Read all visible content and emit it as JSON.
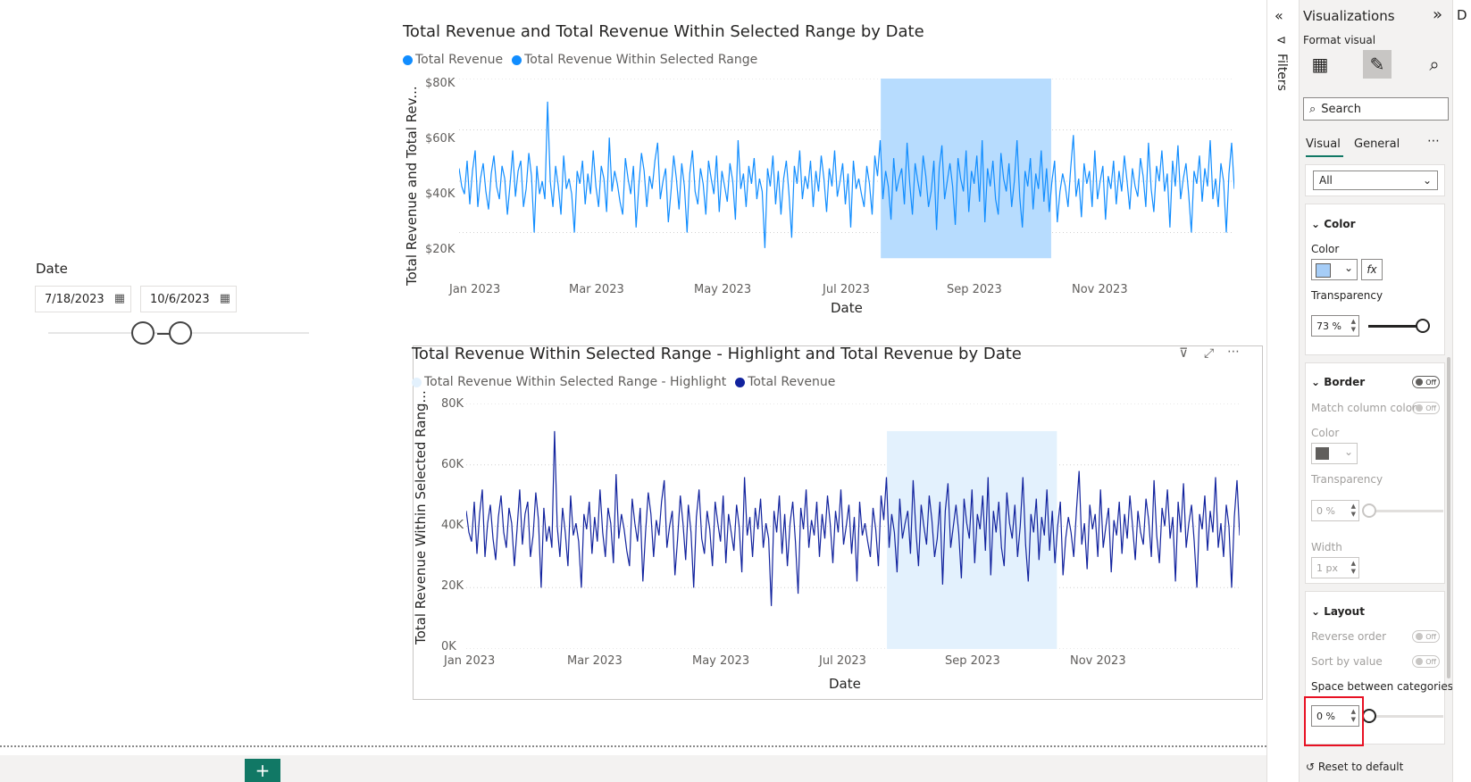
{
  "slicer": {
    "title": "Date",
    "start": "7/18/2023",
    "end": "10/6/2023",
    "calendar_icon": "calendar-icon"
  },
  "chart1": {
    "title": "Total Revenue and Total Revenue Within Selected Range by Date",
    "legend": [
      {
        "label": "Total Revenue",
        "color": "#118dff"
      },
      {
        "label": "Total Revenue Within Selected Range",
        "color": "#118dff"
      }
    ],
    "ylabel": "Total Revenue and Total Rev...",
    "xlabel": "Date",
    "yticks": [
      "$80K",
      "$60K",
      "$40K",
      "$20K"
    ],
    "xticks": [
      "Jan 2023",
      "Mar 2023",
      "May 2023",
      "Jul 2023",
      "Sep 2023",
      "Nov 2023"
    ],
    "line_color": "#118dff",
    "range_color": "#b7dcfe"
  },
  "chart2": {
    "title": "Total Revenue Within Selected Range - Highlight and Total Revenue by Date",
    "legend": [
      {
        "label": "Total Revenue Within Selected Range - Highlight",
        "color": "#e3f1fd"
      },
      {
        "label": "Total Revenue",
        "color": "#12239e"
      }
    ],
    "ylabel": "Total Revenue Within Selected Rang...",
    "xlabel": "Date",
    "yticks": [
      "80K",
      "60K",
      "40K",
      "20K",
      "0K"
    ],
    "xticks": [
      "Jan 2023",
      "Mar 2023",
      "May 2023",
      "Jul 2023",
      "Sep 2023",
      "Nov 2023"
    ],
    "line_color": "#12239e",
    "range_color": "#e3f1fd",
    "header_icons": [
      "filter-icon",
      "focus-mode-icon",
      "more-options-icon"
    ]
  },
  "chart_data": [
    {
      "type": "line",
      "title": "Total Revenue and Total Revenue Within Selected Range by Date",
      "xlabel": "Date",
      "ylabel": "Total Revenue and Total Rev...",
      "x_range": [
        "2023-01-01",
        "2023-12-31"
      ],
      "ylim": [
        0,
        80000
      ],
      "series": [
        {
          "name": "Total Revenue",
          "values": [
            45000,
            38000,
            35000,
            48000,
            31000,
            44000,
            52000,
            30000,
            41000,
            47000,
            36000,
            29000,
            43000,
            50000,
            38000,
            33000,
            46000,
            41000,
            27000,
            39000,
            52000,
            34000,
            44000,
            48000,
            30000,
            37000,
            51000,
            42000,
            20000,
            46000,
            35000,
            40000,
            33000,
            71000,
            40000,
            30000,
            46000,
            38000,
            27000,
            50000,
            37000,
            41000,
            35000,
            20000,
            44000,
            39000,
            48000,
            31000,
            43000,
            35000,
            52000,
            38000,
            30000,
            46000,
            41000,
            28000,
            57000,
            36000,
            44000,
            39000,
            32000,
            27000,
            49000,
            41000,
            35000,
            46000,
            22000,
            38000,
            51000,
            44000,
            30000,
            42000,
            37000,
            48000,
            55000,
            33000,
            40000,
            45000,
            24000,
            36000,
            50000,
            41000,
            29000,
            47000,
            38000,
            20000,
            43000,
            52000,
            36000,
            31000,
            45000,
            39000,
            27000,
            48000,
            41000,
            35000,
            50000,
            28000,
            44000,
            38000,
            32000,
            47000,
            40000,
            25000,
            56000,
            37000,
            43000,
            30000,
            46000,
            39000,
            49000,
            33000,
            41000,
            36000,
            14000,
            45000,
            38000,
            50000,
            31000,
            44000,
            27000,
            41000,
            48000,
            35000,
            18000,
            46000,
            39000,
            52000,
            33000,
            42000,
            37000,
            48000,
            30000,
            44000,
            36000,
            50000,
            41000,
            28000,
            45000,
            38000,
            52000,
            34000,
            40000,
            47000,
            31000,
            43000,
            22000,
            48000,
            37000,
            41000,
            35000,
            30000,
            46000,
            39000,
            27000,
            50000,
            42000,
            56000,
            33000,
            44000,
            38000,
            25000,
            49000,
            36000,
            41000,
            45000,
            31000,
            55000,
            39000,
            27000,
            47000,
            40000,
            34000,
            50000,
            42000,
            30000,
            36000,
            48000,
            21000,
            45000,
            54000,
            33000,
            40000,
            47000,
            38000,
            23000,
            49000,
            41000,
            36000,
            52000,
            28000,
            44000,
            39000,
            50000,
            32000,
            56000,
            24000,
            45000,
            38000,
            48000,
            33000,
            27000,
            51000,
            41000,
            36000,
            47000,
            30000,
            40000,
            56000,
            34000,
            22000,
            44000,
            38000,
            49000,
            29000,
            43000,
            37000,
            52000,
            32000,
            45000,
            28000,
            40000,
            48000,
            24000,
            36000,
            43000,
            38000,
            30000,
            45000,
            58000,
            34000,
            41000,
            26000,
            47000,
            39000,
            44000,
            30000,
            52000,
            33000,
            40000,
            46000,
            25000,
            42000,
            37000,
            48000,
            31000,
            44000,
            36000,
            50000,
            40000,
            29000,
            45000,
            38000,
            34000,
            49000,
            42000,
            30000,
            55000,
            37000,
            28000,
            46000,
            40000,
            52000,
            36000,
            43000,
            22000,
            48000,
            38000,
            54000,
            33000,
            41000,
            47000,
            35000,
            20000,
            44000,
            39000,
            50000,
            32000,
            45000,
            38000,
            56000,
            33000,
            41000,
            30000,
            47000,
            40000,
            20000,
            43000,
            55000,
            37000
          ]
        },
        {
          "name": "Total Revenue Within Selected Range",
          "x_start": "2023-07-18",
          "x_end": "2023-10-06",
          "y_band": [
            10000,
            80000
          ]
        }
      ]
    },
    {
      "type": "line",
      "title": "Total Revenue Within Selected Range - Highlight and Total Revenue by Date",
      "xlabel": "Date",
      "ylabel": "Total Revenue Within Selected Rang...",
      "x_range": [
        "2023-01-01",
        "2023-12-31"
      ],
      "ylim": [
        0,
        80000
      ],
      "series": [
        {
          "name": "Total Revenue Within Selected Range - Highlight",
          "x_start": "2023-07-18",
          "x_end": "2023-10-06",
          "y_band": [
            0,
            71000
          ]
        },
        {
          "name": "Total Revenue",
          "same_as": "chart1"
        }
      ]
    }
  ],
  "filters": {
    "label": "Filters",
    "collapse_icon": "double-chevron-left-icon",
    "filter_icon": "filter-icon"
  },
  "viz_pane": {
    "title": "Visualizations",
    "subtitle": "Format visual",
    "expand_icon": "double-chevron-right-icon",
    "search_placeholder": "Search",
    "tabs": [
      "Visual",
      "General"
    ],
    "more": "⋯",
    "dropdown_value": "All",
    "color_section": {
      "header": "Color",
      "color_label": "Color",
      "swatch": "#a6cdf7",
      "fx": "fx",
      "transparency_label": "Transparency",
      "transparency_value": "73 %",
      "transparency": 0.73
    },
    "border_section": {
      "header": "Border",
      "toggle": "Off",
      "match_label": "Match column color",
      "match_toggle": "Off",
      "color_label": "Color",
      "swatch": "#605e5c",
      "transparency_label": "Transparency",
      "transparency_value": "0 %",
      "width_label": "Width",
      "width_value": "1 px"
    },
    "layout_section": {
      "header": "Layout",
      "reverse_label": "Reverse order",
      "reverse_toggle": "Off",
      "sort_label": "Sort by value",
      "sort_toggle": "Off",
      "space_label": "Space between categories",
      "space_value": "0 %"
    },
    "reset_label": "Reset to default",
    "highlight_color": "#e81123"
  },
  "right_strip": {
    "letter": "D"
  }
}
